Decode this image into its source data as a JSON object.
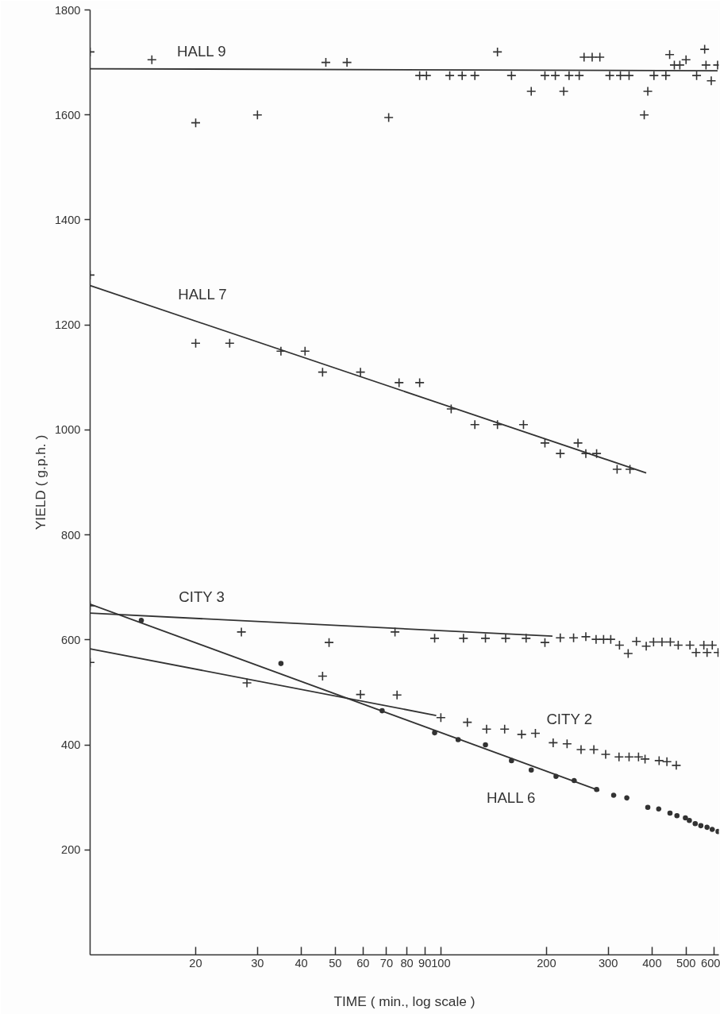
{
  "chart_data": {
    "type": "scatter",
    "xlabel": "TIME ( min., log scale )",
    "ylabel": "YIELD ( g.p.h. )",
    "log": "x",
    "grid": false,
    "xlim": [
      10,
      620
    ],
    "ylim": [
      0,
      1800
    ],
    "xticks": [
      20,
      30,
      40,
      50,
      60,
      70,
      80,
      90,
      100,
      200,
      300,
      400,
      500,
      600
    ],
    "yticks": [
      200,
      400,
      600,
      800,
      1000,
      1200,
      1400,
      1600,
      1800
    ],
    "series": [
      {
        "name": "HALL 9",
        "marker": "cross",
        "color": "#333333",
        "x": [
          10,
          15,
          20,
          30,
          47,
          54,
          71,
          87,
          91,
          106,
          115,
          125,
          145,
          159,
          181,
          198,
          212,
          224,
          232,
          248,
          256,
          270,
          284,
          303,
          325,
          344,
          380,
          389,
          405,
          438,
          449,
          463,
          480,
          500,
          536,
          565,
          570,
          590,
          615
        ],
        "values": [
          1720,
          1705,
          1585,
          1600,
          1700,
          1700,
          1595,
          1675,
          1675,
          1675,
          1675,
          1675,
          1720,
          1675,
          1645,
          1675,
          1675,
          1645,
          1675,
          1675,
          1710,
          1710,
          1710,
          1675,
          1675,
          1675,
          1600,
          1645,
          1675,
          1675,
          1715,
          1695,
          1695,
          1705,
          1675,
          1725,
          1695,
          1665,
          1695
        ]
      },
      {
        "type": "line",
        "color": "#333333",
        "x": [
          10,
          615
        ],
        "values": [
          1688,
          1684
        ]
      },
      {
        "name": "HALL 7",
        "marker": "cross",
        "color": "#333333",
        "x": [
          10,
          20,
          25,
          35,
          41,
          46,
          59,
          76,
          87,
          107,
          125,
          145,
          172,
          198,
          219,
          246,
          259,
          278,
          318,
          346
        ],
        "values": [
          1295,
          1165,
          1165,
          1150,
          1150,
          1110,
          1110,
          1090,
          1090,
          1040,
          1010,
          1010,
          1010,
          975,
          955,
          975,
          955,
          955,
          925,
          925
        ]
      },
      {
        "type": "line",
        "color": "#333333",
        "x": [
          10,
          385
        ],
        "values": [
          1275,
          918
        ]
      },
      {
        "name": "CITY 3",
        "marker": "cross",
        "color": "#333333",
        "x": [
          10,
          27,
          48,
          74,
          96,
          116,
          134,
          153,
          175,
          198,
          219,
          239,
          259,
          277,
          291,
          305,
          323,
          342,
          361,
          385,
          404,
          427,
          451,
          475,
          513,
          534,
          562,
          574,
          594,
          617
        ],
        "values": [
          665,
          615,
          595,
          615,
          603,
          603,
          603,
          603,
          603,
          595,
          604,
          604,
          606,
          601,
          601,
          601,
          590,
          574,
          597,
          588,
          596,
          596,
          596,
          590,
          590,
          576,
          590,
          576,
          590,
          576
        ]
      },
      {
        "type": "line",
        "color": "#333333",
        "x": [
          10,
          208
        ],
        "values": [
          651,
          607
        ]
      },
      {
        "name": "CITY 2",
        "marker": "cross",
        "color": "#333333",
        "x": [
          10,
          28,
          46,
          59,
          75,
          100,
          119,
          135,
          152,
          170,
          186,
          209,
          229,
          251,
          273,
          295,
          322,
          344,
          366,
          382,
          419,
          441,
          469
        ],
        "values": [
          557,
          518,
          531,
          496,
          495,
          452,
          443,
          430,
          430,
          420,
          422,
          404,
          402,
          391,
          391,
          382,
          377,
          377,
          377,
          373,
          370,
          368,
          361
        ]
      },
      {
        "type": "line",
        "color": "#333333",
        "x": [
          10,
          97
        ],
        "values": [
          583,
          456
        ]
      },
      {
        "name": "HALL 6",
        "marker": "circle",
        "color": "#333333",
        "x": [
          14,
          35,
          68,
          96,
          112,
          134,
          159,
          181,
          213,
          240,
          278,
          311,
          339,
          389,
          418,
          450,
          471,
          498,
          511,
          531,
          551,
          574,
          594,
          617
        ],
        "values": [
          637,
          555,
          465,
          423,
          410,
          400,
          370,
          352,
          340,
          332,
          315,
          304,
          299,
          281,
          278,
          270,
          265,
          261,
          256,
          250,
          246,
          243,
          239,
          235
        ]
      },
      {
        "type": "line",
        "color": "#333333",
        "x": [
          10,
          283
        ],
        "values": [
          668,
          313
        ]
      }
    ]
  }
}
